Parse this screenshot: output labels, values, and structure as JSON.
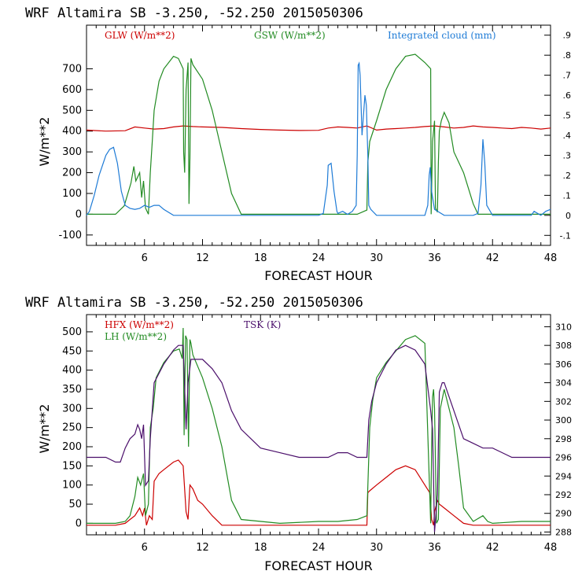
{
  "chart_data": [
    {
      "type": "line",
      "title": "WRF   Altamira   SB   -3.250,  -52.250   2015050306",
      "xlabel": "FORECAST HOUR",
      "ylabel": "W/m**2",
      "xlim": [
        0,
        48
      ],
      "ylim": [
        -150,
        910
      ],
      "x_ticks": [
        6,
        12,
        18,
        24,
        30,
        36,
        42,
        48
      ],
      "y_ticks": [
        -100,
        0,
        100,
        200,
        300,
        400,
        500,
        600,
        700
      ],
      "y2_label_ticks": [
        "-.1",
        "0",
        ".1",
        ".2",
        ".3",
        ".4",
        ".5",
        ".6",
        ".7",
        ".8",
        ".9"
      ],
      "y2_range": [
        -0.15,
        0.95
      ],
      "series": [
        {
          "name": "GLW (W/m**2)",
          "color": "#cc0000",
          "axis": "left",
          "x": [
            0,
            2,
            4,
            5,
            6,
            7,
            8,
            9,
            10,
            11,
            12,
            14,
            16,
            18,
            20,
            22,
            24,
            25,
            26,
            27,
            28,
            29,
            30,
            31,
            32,
            33,
            34,
            35,
            36,
            37,
            38,
            39,
            40,
            41,
            42,
            43,
            44,
            45,
            46,
            47,
            48
          ],
          "y": [
            405,
            400,
            402,
            420,
            415,
            410,
            412,
            420,
            425,
            422,
            420,
            418,
            412,
            408,
            405,
            403,
            404,
            415,
            420,
            418,
            415,
            425,
            405,
            410,
            412,
            415,
            418,
            422,
            425,
            420,
            415,
            418,
            425,
            420,
            418,
            415,
            412,
            418,
            415,
            410,
            415
          ]
        },
        {
          "name": "GSW (W/m**2)",
          "color": "#228b22",
          "axis": "left",
          "x": [
            0,
            3,
            3.9,
            4.6,
            4.9,
            5.1,
            5.5,
            5.7,
            5.9,
            6.1,
            6.4,
            6.6,
            6.8,
            7.0,
            7.5,
            8,
            9,
            9.5,
            10,
            10.05,
            10.15,
            10.3,
            10.5,
            10.6,
            10.7,
            10.8,
            11,
            12,
            13,
            14,
            15,
            16,
            26,
            27,
            28,
            29,
            29.1,
            29.3,
            30,
            31,
            32,
            33,
            34,
            35,
            35.6,
            35.65,
            35.8,
            36,
            36.1,
            36.3,
            36.4,
            36.5,
            36.7,
            37,
            37.5,
            38,
            39,
            40,
            40.5,
            48
          ],
          "y": [
            0,
            0,
            40,
            150,
            230,
            160,
            200,
            80,
            160,
            30,
            0,
            200,
            350,
            500,
            640,
            700,
            760,
            750,
            700,
            300,
            200,
            600,
            730,
            50,
            270,
            750,
            720,
            650,
            500,
            300,
            100,
            0,
            0,
            0,
            0,
            20,
            250,
            350,
            450,
            600,
            700,
            760,
            770,
            730,
            700,
            0,
            350,
            450,
            30,
            10,
            250,
            400,
            450,
            490,
            440,
            300,
            200,
            50,
            0,
            0
          ]
        },
        {
          "name": "Integrated cloud (mm)",
          "color": "#1e7bd6",
          "axis": "right",
          "x": [
            0,
            0.3,
            0.8,
            1.3,
            2,
            2.4,
            2.8,
            3.2,
            3.6,
            4,
            4.5,
            5,
            5.5,
            6,
            6.5,
            7,
            7.5,
            8,
            9,
            12,
            20,
            24,
            24.5,
            24.9,
            25,
            25.3,
            25.6,
            25.9,
            26,
            26.5,
            27,
            27.5,
            27.9,
            28,
            28.1,
            28.2,
            28.3,
            28.5,
            28.8,
            28.95,
            29.1,
            29.2,
            29.4,
            30,
            34,
            35,
            35.3,
            35.45,
            35.55,
            35.7,
            36,
            37,
            40,
            40.5,
            40.8,
            41,
            41.2,
            41.4,
            42,
            46,
            46.3,
            47,
            47.5,
            48
          ],
          "y": [
            0,
            0.02,
            0.1,
            0.2,
            0.3,
            0.33,
            0.34,
            0.26,
            0.12,
            0.05,
            0.035,
            0.03,
            0.035,
            0.05,
            0.04,
            0.05,
            0.05,
            0.03,
            0,
            0,
            0,
            0,
            0.01,
            0.15,
            0.25,
            0.26,
            0.12,
            0.02,
            0.01,
            0.02,
            0.005,
            0.02,
            0.05,
            0.3,
            0.75,
            0.76,
            0.7,
            0.4,
            0.6,
            0.55,
            0.3,
            0.05,
            0.03,
            0,
            0,
            0,
            0.05,
            0.2,
            0.24,
            0.12,
            0.03,
            0,
            0,
            0.01,
            0.15,
            0.38,
            0.26,
            0.05,
            0,
            0,
            0.02,
            0,
            0.02,
            0.03
          ]
        }
      ]
    },
    {
      "type": "line",
      "title": "WRF   Altamira   SB   -3.250,  -52.250   2015050306",
      "xlabel": "FORECAST HOUR",
      "ylabel": "W/m**2",
      "xlim": [
        0,
        48
      ],
      "ylim": [
        -30,
        545
      ],
      "x_ticks": [
        6,
        12,
        18,
        24,
        30,
        36,
        42,
        48
      ],
      "y_ticks": [
        0,
        50,
        100,
        150,
        200,
        250,
        300,
        350,
        400,
        450,
        500
      ],
      "y2_ticks": [
        288,
        290,
        292,
        294,
        296,
        298,
        300,
        302,
        304,
        306,
        308,
        310
      ],
      "y2_range": [
        287.7,
        311.3
      ],
      "series": [
        {
          "name": "HFX (W/m**2)",
          "color": "#cc0000",
          "axis": "left",
          "x": [
            0,
            3,
            4,
            4.5,
            5,
            5.5,
            5.8,
            6,
            6.2,
            6.5,
            6.8,
            7,
            7.5,
            8,
            9,
            9.5,
            10,
            10.3,
            10.5,
            10.7,
            11,
            11.5,
            12,
            13,
            14,
            15,
            16,
            29,
            29.1,
            29.3,
            30,
            31,
            32,
            33,
            34,
            35,
            35.5,
            35.7,
            35.9,
            36,
            36.3,
            36.5,
            37,
            38,
            39,
            40,
            48
          ],
          "y": [
            -5,
            -5,
            0,
            10,
            20,
            40,
            20,
            40,
            -5,
            20,
            10,
            110,
            130,
            140,
            160,
            165,
            150,
            30,
            10,
            100,
            90,
            60,
            50,
            20,
            -5,
            -5,
            -5,
            -5,
            80,
            85,
            100,
            120,
            140,
            150,
            140,
            100,
            80,
            10,
            -5,
            30,
            60,
            50,
            40,
            20,
            0,
            -5,
            -5
          ]
        },
        {
          "name": "LH (W/m**2)",
          "color": "#228b22",
          "axis": "left",
          "x": [
            0,
            3,
            4,
            4.5,
            5,
            5.3,
            5.6,
            5.9,
            6.1,
            6.4,
            6.6,
            6.9,
            7.2,
            8,
            9,
            9.6,
            9.9,
            10.0,
            10.1,
            10.25,
            10.4,
            10.55,
            10.7,
            10.8,
            11,
            12,
            13,
            14,
            15,
            16,
            20,
            24,
            26,
            28,
            29,
            29.3,
            29.6,
            30,
            31,
            32,
            33,
            34,
            35,
            35.6,
            35.7,
            35.8,
            35.9,
            36,
            36.2,
            36.4,
            36.6,
            37,
            38,
            38.5,
            39,
            40,
            41,
            41.5,
            42,
            45,
            48
          ],
          "y": [
            0,
            0,
            5,
            20,
            70,
            120,
            100,
            130,
            20,
            50,
            250,
            300,
            380,
            420,
            450,
            455,
            430,
            510,
            230,
            490,
            480,
            200,
            480,
            470,
            440,
            380,
            300,
            200,
            60,
            10,
            0,
            5,
            5,
            10,
            20,
            250,
            320,
            380,
            420,
            450,
            480,
            490,
            470,
            0,
            200,
            330,
            350,
            300,
            0,
            10,
            300,
            350,
            250,
            150,
            40,
            5,
            20,
            5,
            0,
            5,
            5
          ]
        },
        {
          "name": "TSK (K)",
          "color": "#4b0f6b",
          "axis": "right",
          "x": [
            0,
            2,
            3,
            3.5,
            4,
            4.5,
            5,
            5.3,
            5.5,
            5.7,
            5.9,
            6.1,
            6.4,
            6.6,
            7,
            8,
            9,
            9.5,
            10,
            10.3,
            10.5,
            10.8,
            11,
            12,
            13,
            14,
            15,
            16,
            18,
            20,
            22,
            24,
            25,
            26,
            27,
            28,
            29,
            29.2,
            29.5,
            30,
            31,
            32,
            33,
            34,
            35,
            35.6,
            35.8,
            36,
            36.3,
            36.5,
            36.8,
            37,
            38,
            39,
            40,
            41,
            42,
            44,
            46,
            47,
            48
          ],
          "y": [
            296,
            296,
            295.5,
            295.5,
            297,
            298,
            298.5,
            299.5,
            299,
            298,
            299.5,
            293,
            293.5,
            298,
            304,
            306,
            307.5,
            308,
            308,
            299,
            304,
            306.5,
            306.5,
            306.5,
            305.5,
            304,
            301,
            299,
            297,
            296.5,
            296,
            296,
            296,
            296.5,
            296.5,
            296,
            296,
            300,
            302,
            304,
            306,
            307.5,
            308,
            307.5,
            306,
            301,
            299,
            288,
            292,
            303,
            304,
            304,
            301,
            298,
            297.5,
            297,
            297,
            296,
            296,
            296,
            296
          ]
        }
      ]
    }
  ]
}
